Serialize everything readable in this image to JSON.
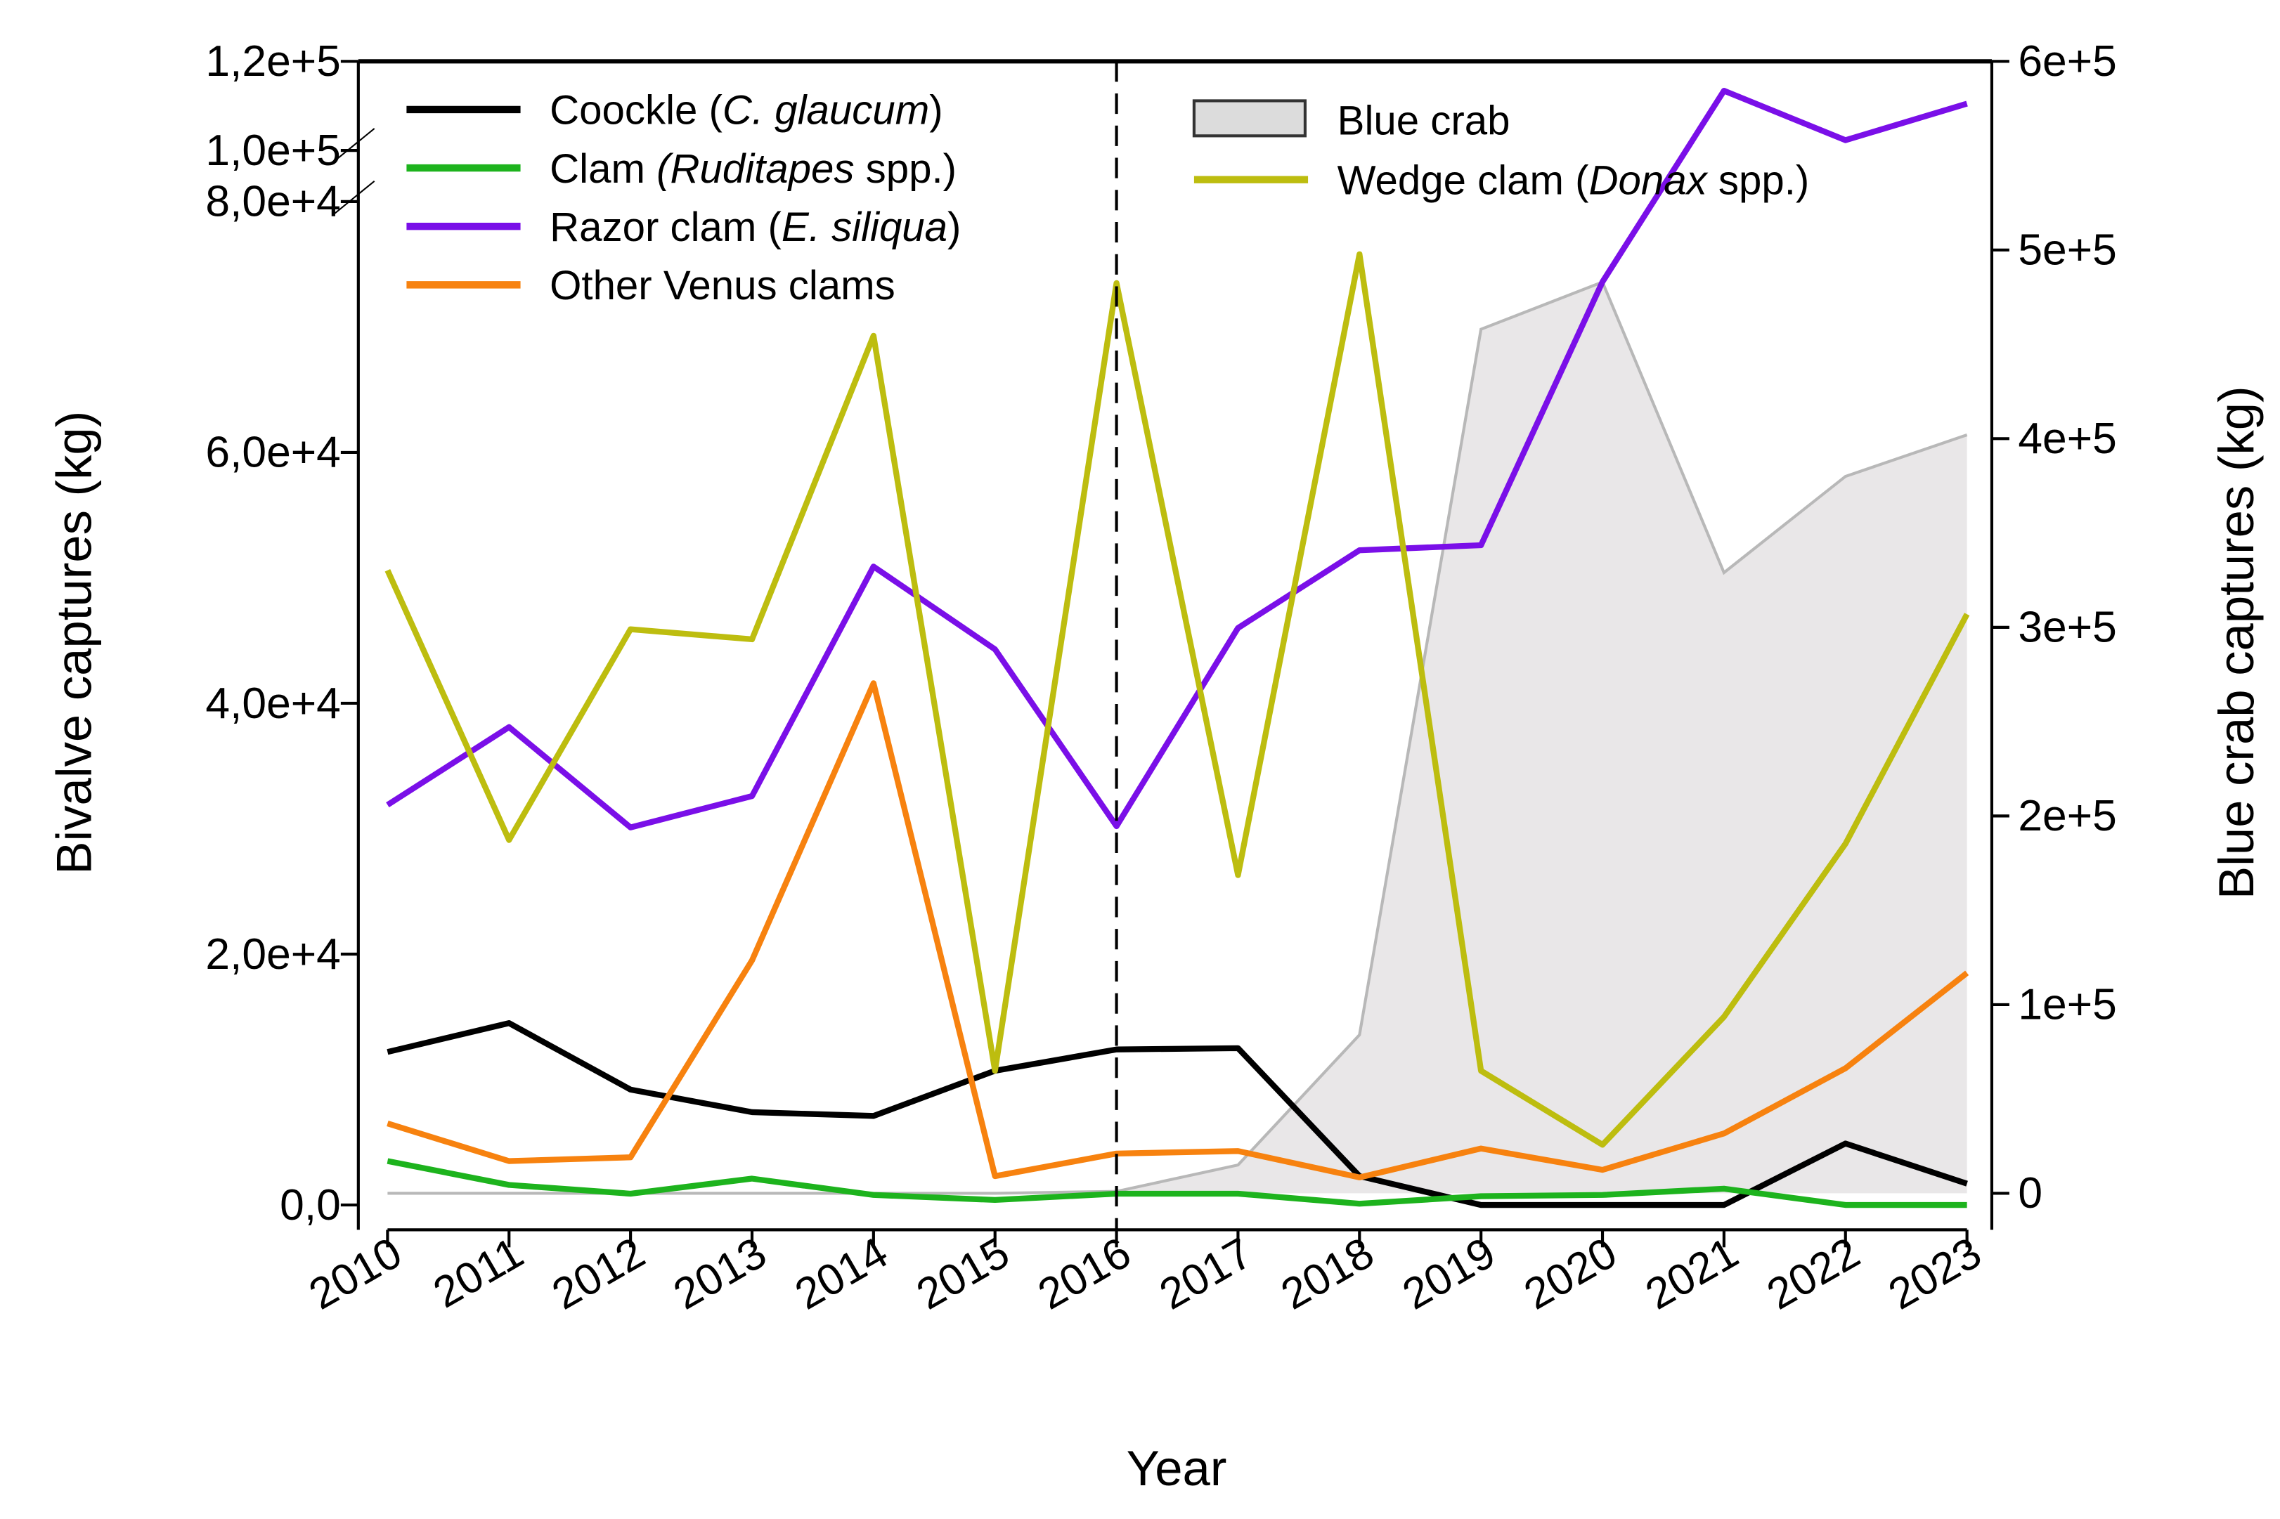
{
  "chart_data": {
    "type": "line",
    "xlabel": "Year",
    "ylabel": "Bivalve captures (kg)",
    "y2label": "Blue crab captures (kg)",
    "x": [
      2010,
      2011,
      2012,
      2013,
      2014,
      2015,
      2016,
      2017,
      2018,
      2019,
      2020,
      2021,
      2022,
      2023
    ],
    "x_tick_labels": [
      "2010",
      "2011",
      "2012",
      "2013",
      "2014",
      "2015",
      "2016",
      "2017",
      "2018",
      "2019",
      "2020",
      "2021",
      "2022",
      "2023"
    ],
    "y_ticks": [
      {
        "value": 0,
        "label": "0,0"
      },
      {
        "value": 20000,
        "label": "2,0e+4"
      },
      {
        "value": 40000,
        "label": "4,0e+4"
      },
      {
        "value": 60000,
        "label": "6,0e+4"
      },
      {
        "value": 80000,
        "label": "8,0e+4"
      },
      {
        "value": 100000,
        "label": "1,0e+5"
      },
      {
        "value": 120000,
        "label": "1,2e+5"
      }
    ],
    "y_axis_break": [
      80000,
      100000
    ],
    "y2_ticks": [
      {
        "value": 0,
        "label": "0"
      },
      {
        "value": 100000,
        "label": "1e+5"
      },
      {
        "value": 200000,
        "label": "2e+5"
      },
      {
        "value": 300000,
        "label": "3e+5"
      },
      {
        "value": 400000,
        "label": "4e+5"
      },
      {
        "value": 500000,
        "label": "5e+5"
      },
      {
        "value": 600000,
        "label": "6e+5"
      }
    ],
    "ylim": [
      0,
      120000
    ],
    "y2lim": [
      0,
      600000
    ],
    "vline_x": 2016,
    "grid": false,
    "legend_placement": "top",
    "series": [
      {
        "name": "Coockle (C. glaucum)",
        "legend": {
          "pre": "Coockle (",
          "it": "C. glaucum",
          "post": ")"
        },
        "color": "#000000",
        "axis": "left",
        "values": [
          12200,
          14500,
          9200,
          7400,
          7100,
          10700,
          12400,
          12500,
          2300,
          0,
          0,
          0,
          4900,
          1700
        ]
      },
      {
        "name": "Clam (Ruditapes spp.)",
        "legend": {
          "pre": "Clam ",
          "it": "(Ruditapes",
          "post": " spp.)"
        },
        "color": "#1db31d",
        "axis": "left",
        "values": [
          3500,
          1600,
          900,
          2100,
          800,
          400,
          900,
          900,
          100,
          700,
          800,
          1300,
          0,
          0
        ]
      },
      {
        "name": "Razor clam (E. siliqua)",
        "legend": {
          "pre": "Razor clam (",
          "it": "E. siliqua",
          "post": ")"
        },
        "color": "#7a0fe8",
        "axis": "left",
        "values": [
          31900,
          38100,
          30100,
          32600,
          50900,
          44300,
          30200,
          46000,
          52200,
          52600,
          73600,
          113400,
          102300,
          110500
        ]
      },
      {
        "name": "Other Venus clams",
        "legend": {
          "pre": "Other Venus clams",
          "it": "",
          "post": ""
        },
        "color": "#f7820f",
        "axis": "left",
        "values": [
          6500,
          3500,
          3800,
          19500,
          41600,
          2300,
          4100,
          4300,
          2200,
          4500,
          2800,
          5700,
          10900,
          18500
        ]
      },
      {
        "name": "Blue crab",
        "legend": {
          "pre": "Blue crab",
          "it": "",
          "post": ""
        },
        "color": "#e9e7e8",
        "edge": "#b8b8b8",
        "axis": "right",
        "type": "area",
        "values": [
          0,
          0,
          0,
          0,
          0,
          0,
          1000,
          15000,
          84000,
          458000,
          483000,
          329000,
          380000,
          402000
        ]
      },
      {
        "name": "Wedge clam (Donax spp.)",
        "legend": {
          "pre": "Wedge clam (",
          "it": "Donax",
          "post": " spp.)"
        },
        "color": "#bdbd0f",
        "axis": "left",
        "values": [
          50600,
          29100,
          45900,
          45100,
          69300,
          10700,
          73500,
          26300,
          75800,
          10700,
          4800,
          15000,
          28800,
          47100
        ]
      }
    ]
  }
}
